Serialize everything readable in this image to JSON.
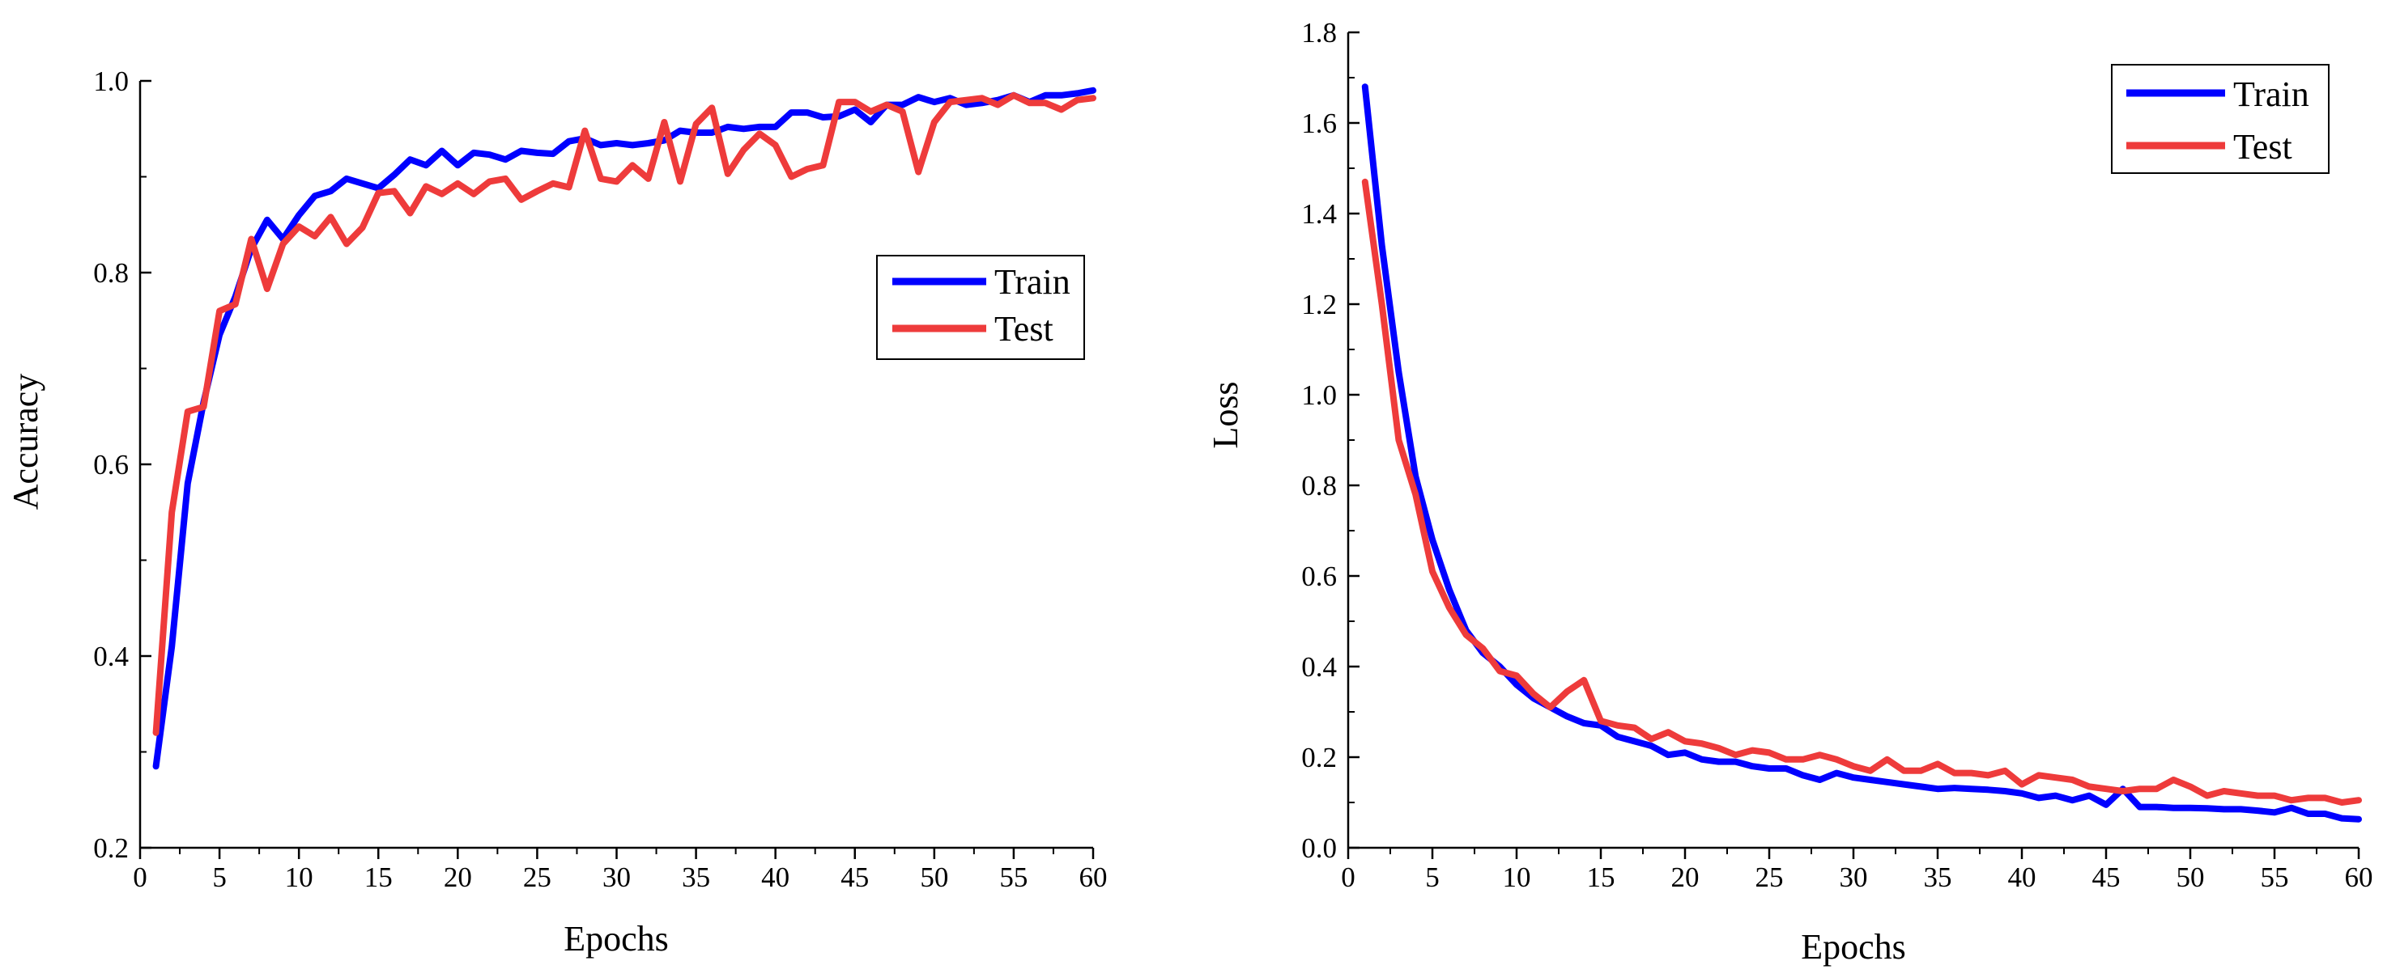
{
  "chart_data": [
    {
      "type": "line",
      "title": "",
      "xlabel": "Epochs",
      "ylabel": "Accuracy",
      "xlim": [
        0,
        60
      ],
      "ylim": [
        0.2,
        1.0
      ],
      "xticks": [
        "0",
        "5",
        "10",
        "15",
        "20",
        "25",
        "30",
        "35",
        "40",
        "45",
        "50",
        "55",
        "60"
      ],
      "yticks": [
        "0.2",
        "0.4",
        "0.6",
        "0.8",
        "1.0"
      ],
      "grid": false,
      "legend_position": "center-right",
      "x": [
        1,
        2,
        3,
        4,
        5,
        6,
        7,
        8,
        9,
        10,
        11,
        12,
        13,
        14,
        15,
        16,
        17,
        18,
        19,
        20,
        21,
        22,
        23,
        24,
        25,
        26,
        27,
        28,
        29,
        30,
        31,
        32,
        33,
        34,
        35,
        36,
        37,
        38,
        39,
        40,
        41,
        42,
        43,
        44,
        45,
        46,
        47,
        48,
        49,
        50,
        51,
        52,
        53,
        54,
        55,
        56,
        57,
        58,
        59,
        60
      ],
      "series": [
        {
          "name": "Train",
          "color": "#0000ff",
          "values": [
            0.285,
            0.41,
            0.58,
            0.665,
            0.735,
            0.775,
            0.825,
            0.855,
            0.835,
            0.86,
            0.88,
            0.885,
            0.898,
            0.893,
            0.888,
            0.902,
            0.918,
            0.912,
            0.927,
            0.912,
            0.925,
            0.923,
            0.918,
            0.927,
            0.925,
            0.924,
            0.937,
            0.94,
            0.933,
            0.935,
            0.933,
            0.935,
            0.938,
            0.948,
            0.946,
            0.946,
            0.952,
            0.95,
            0.952,
            0.952,
            0.967,
            0.967,
            0.962,
            0.963,
            0.97,
            0.957,
            0.975,
            0.975,
            0.983,
            0.978,
            0.982,
            0.975,
            0.977,
            0.98,
            0.985,
            0.978,
            0.985,
            0.985,
            0.987,
            0.99
          ]
        },
        {
          "name": "Test",
          "color": "#ee3b3b",
          "values": [
            0.32,
            0.55,
            0.655,
            0.66,
            0.76,
            0.767,
            0.835,
            0.783,
            0.83,
            0.848,
            0.838,
            0.858,
            0.83,
            0.847,
            0.883,
            0.885,
            0.862,
            0.89,
            0.882,
            0.893,
            0.882,
            0.895,
            0.898,
            0.876,
            0.885,
            0.893,
            0.889,
            0.948,
            0.898,
            0.895,
            0.912,
            0.898,
            0.957,
            0.895,
            0.955,
            0.972,
            0.903,
            0.928,
            0.945,
            0.933,
            0.9,
            0.908,
            0.912,
            0.978,
            0.978,
            0.968,
            0.975,
            0.968,
            0.905,
            0.957,
            0.978,
            0.98,
            0.982,
            0.975,
            0.985,
            0.977,
            0.977,
            0.97,
            0.98,
            0.982
          ]
        }
      ]
    },
    {
      "type": "line",
      "title": "",
      "xlabel": "Epochs",
      "ylabel": "Loss",
      "xlim": [
        0,
        60
      ],
      "ylim": [
        0.0,
        1.8
      ],
      "xticks": [
        "0",
        "5",
        "10",
        "15",
        "20",
        "25",
        "30",
        "35",
        "40",
        "45",
        "50",
        "55",
        "60"
      ],
      "yticks": [
        "0.0",
        "0.2",
        "0.4",
        "0.6",
        "0.8",
        "1.0",
        "1.2",
        "1.4",
        "1.6",
        "1.8"
      ],
      "grid": false,
      "legend_position": "top-right",
      "x": [
        1,
        2,
        3,
        4,
        5,
        6,
        7,
        8,
        9,
        10,
        11,
        12,
        13,
        14,
        15,
        16,
        17,
        18,
        19,
        20,
        21,
        22,
        23,
        24,
        25,
        26,
        27,
        28,
        29,
        30,
        31,
        32,
        33,
        34,
        35,
        36,
        37,
        38,
        39,
        40,
        41,
        42,
        43,
        44,
        45,
        46,
        47,
        48,
        49,
        50,
        51,
        52,
        53,
        54,
        55,
        56,
        57,
        58,
        59,
        60
      ],
      "series": [
        {
          "name": "Train",
          "color": "#0000ff",
          "values": [
            1.68,
            1.33,
            1.05,
            0.82,
            0.68,
            0.57,
            0.48,
            0.43,
            0.4,
            0.36,
            0.33,
            0.31,
            0.29,
            0.275,
            0.27,
            0.245,
            0.235,
            0.225,
            0.205,
            0.21,
            0.195,
            0.19,
            0.19,
            0.18,
            0.175,
            0.175,
            0.16,
            0.15,
            0.165,
            0.155,
            0.15,
            0.145,
            0.14,
            0.135,
            0.13,
            0.132,
            0.13,
            0.128,
            0.125,
            0.12,
            0.11,
            0.115,
            0.105,
            0.115,
            0.095,
            0.13,
            0.09,
            0.09,
            0.088,
            0.088,
            0.087,
            0.085,
            0.085,
            0.082,
            0.078,
            0.088,
            0.075,
            0.075,
            0.065,
            0.063
          ]
        },
        {
          "name": "Test",
          "color": "#ee3b3b",
          "values": [
            1.47,
            1.2,
            0.9,
            0.78,
            0.61,
            0.53,
            0.47,
            0.44,
            0.39,
            0.38,
            0.34,
            0.31,
            0.345,
            0.37,
            0.28,
            0.27,
            0.265,
            0.24,
            0.255,
            0.235,
            0.23,
            0.22,
            0.205,
            0.215,
            0.21,
            0.195,
            0.195,
            0.205,
            0.195,
            0.18,
            0.17,
            0.195,
            0.17,
            0.17,
            0.185,
            0.165,
            0.165,
            0.16,
            0.17,
            0.14,
            0.16,
            0.155,
            0.15,
            0.135,
            0.13,
            0.125,
            0.13,
            0.13,
            0.15,
            0.135,
            0.115,
            0.125,
            0.12,
            0.115,
            0.115,
            0.105,
            0.11,
            0.11,
            0.1,
            0.105
          ]
        }
      ]
    }
  ]
}
